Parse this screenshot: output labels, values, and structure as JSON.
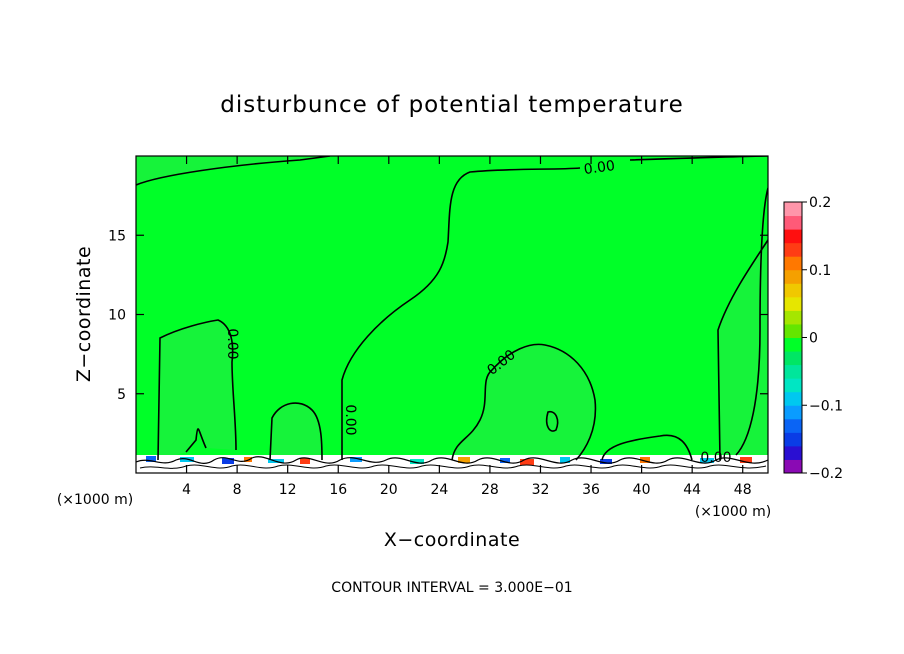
{
  "chart_data": {
    "type": "heatmap",
    "title": "disturbunce of potential temperature",
    "xlabel": "X−coordinate",
    "ylabel": "Z−coordinate",
    "x_unit": "(×1000 m)",
    "y_unit": "(×1000 m)",
    "xlim": [
      0,
      50
    ],
    "ylim": [
      0,
      20
    ],
    "x_ticks": [
      4,
      8,
      12,
      16,
      20,
      24,
      28,
      32,
      36,
      40,
      44,
      48
    ],
    "y_ticks": [
      5,
      10,
      15
    ],
    "colorbar": {
      "min": -0.2,
      "max": 0.2,
      "tick_values": [
        0.2,
        0.1,
        0,
        -0.1,
        -0.2
      ],
      "tick_labels": [
        "0.2",
        "0.1",
        "0",
        "−0.1",
        "−0.2"
      ],
      "colors": [
        "#8a0ab4",
        "#2a0fd2",
        "#0a3ce6",
        "#0a64f5",
        "#0a9cff",
        "#00c8f0",
        "#00e6c3",
        "#00e69b",
        "#00e664",
        "#00ff28",
        "#64e600",
        "#a5e600",
        "#e6e600",
        "#f0c800",
        "#f5a000",
        "#ff7800",
        "#ff3c14",
        "#ff0f0f",
        "#ff5a78",
        "#ff96aa"
      ]
    },
    "contour_label": "0.00",
    "contour_interval_text": "CONTOUR INTERVAL = 3.000E−01"
  }
}
